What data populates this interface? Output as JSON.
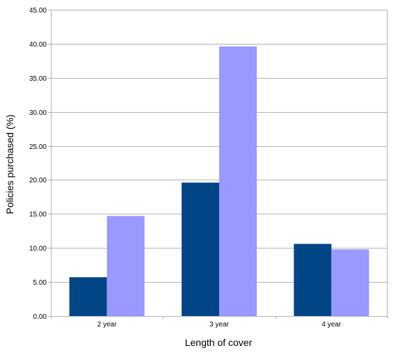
{
  "chart_data": {
    "type": "bar",
    "title": "",
    "xlabel": "Length of cover",
    "ylabel": "Policies purchased (%)",
    "categories": [
      "2 year",
      "3 year",
      "4 year"
    ],
    "series": [
      {
        "values": [
          5.7,
          19.6,
          10.6
        ],
        "color": "#004586"
      },
      {
        "values": [
          14.7,
          39.6,
          9.8
        ],
        "color": "#9999ff"
      }
    ],
    "ylim": [
      0,
      45
    ],
    "yticks": [
      "0.00",
      "5.00",
      "10.00",
      "15.00",
      "20.00",
      "25.00",
      "30.00",
      "35.00",
      "40.00",
      "45.00"
    ],
    "grid": true,
    "legend": "none"
  }
}
